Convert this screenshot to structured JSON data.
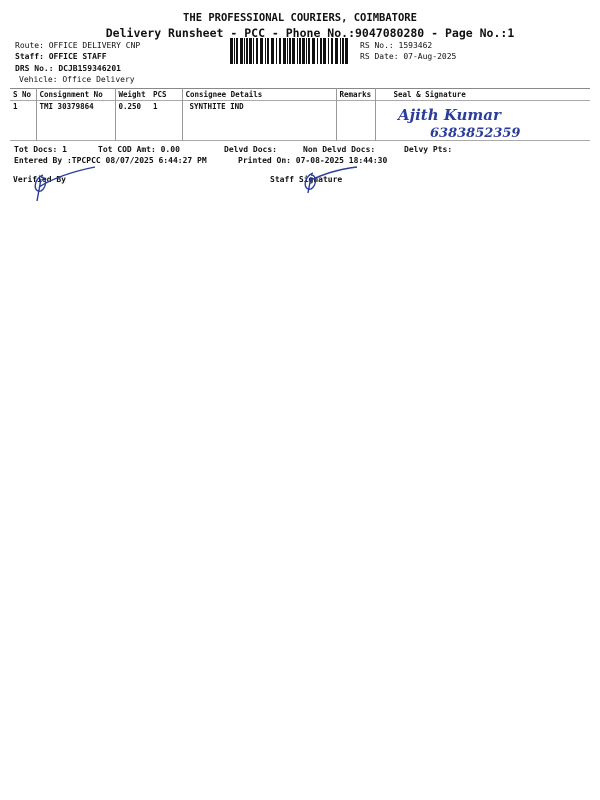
{
  "header": {
    "title": "THE PROFESSIONAL COURIERS, COIMBATORE",
    "subtitle": "Delivery Runsheet - PCC - Phone No.:9047080280 - Page No.:1"
  },
  "info": {
    "route": "Route: OFFICE DELIVERY CNP",
    "staff": "Staff: OFFICE STAFF",
    "drs": "DRS No.: DCJB159346201",
    "vehicle": "Vehicle: Office Delivery",
    "rs_no": "RS No.: 1593462",
    "rs_date": "RS Date: 07-Aug-2025"
  },
  "table": {
    "columns": [
      "S No",
      "Consignment No",
      "Weight",
      "PCS",
      "Consignee Details",
      "Remarks",
      "Seal & Signature"
    ],
    "rows": [
      {
        "sno": "1",
        "consignment": "TMI 30379864",
        "weight": "0.250",
        "pcs": "1",
        "consignee": "SYNTHITE IND",
        "remarks": "",
        "signature": "Ajith Kumar 6383852359"
      }
    ]
  },
  "totals": {
    "tot_docs": "Tot Docs:   1",
    "tot_cod": "Tot COD Amt:     0.00",
    "delvd": "Delvd Docs:",
    "non_delvd": "Non Delvd Docs:",
    "delvy_pts": "Delvy Pts:"
  },
  "footer": {
    "entered": "Entered By :TPCPCC 08/07/2025 6:44:27 PM",
    "printed": "Printed On: 07-08-2025 18:44:30",
    "verified": "Verified By",
    "staff_signature": "Staff Signature"
  },
  "colors": {
    "ink": "#111111",
    "pen": "#2a3d9c"
  }
}
